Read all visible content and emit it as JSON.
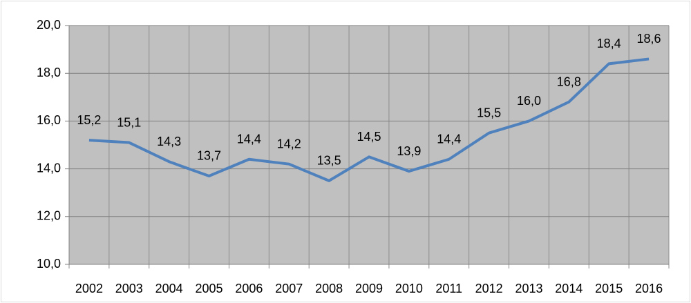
{
  "chart_data": {
    "type": "line",
    "categories": [
      "2002",
      "2003",
      "2004",
      "2005",
      "2006",
      "2007",
      "2008",
      "2009",
      "2010",
      "2011",
      "2012",
      "2013",
      "2014",
      "2015",
      "2016"
    ],
    "values": [
      15.2,
      15.1,
      14.3,
      13.7,
      14.4,
      14.2,
      13.5,
      14.5,
      13.9,
      14.4,
      15.5,
      16.0,
      16.8,
      18.4,
      18.6
    ],
    "value_labels": [
      "15,2",
      "15,1",
      "14,3",
      "13,7",
      "14,4",
      "14,2",
      "13,5",
      "14,5",
      "13,9",
      "14,4",
      "15,5",
      "16,0",
      "16,8",
      "18,4",
      "18,6"
    ],
    "color": "#4f81bd",
    "ylim": [
      10,
      20
    ],
    "yticks": [
      {
        "value": 10,
        "label": "10,0"
      },
      {
        "value": 12,
        "label": "12,0"
      },
      {
        "value": 14,
        "label": "14,0"
      },
      {
        "value": 16,
        "label": "16,0"
      },
      {
        "value": 18,
        "label": "18,0"
      },
      {
        "value": 20,
        "label": "20,0"
      }
    ],
    "grid": true
  }
}
